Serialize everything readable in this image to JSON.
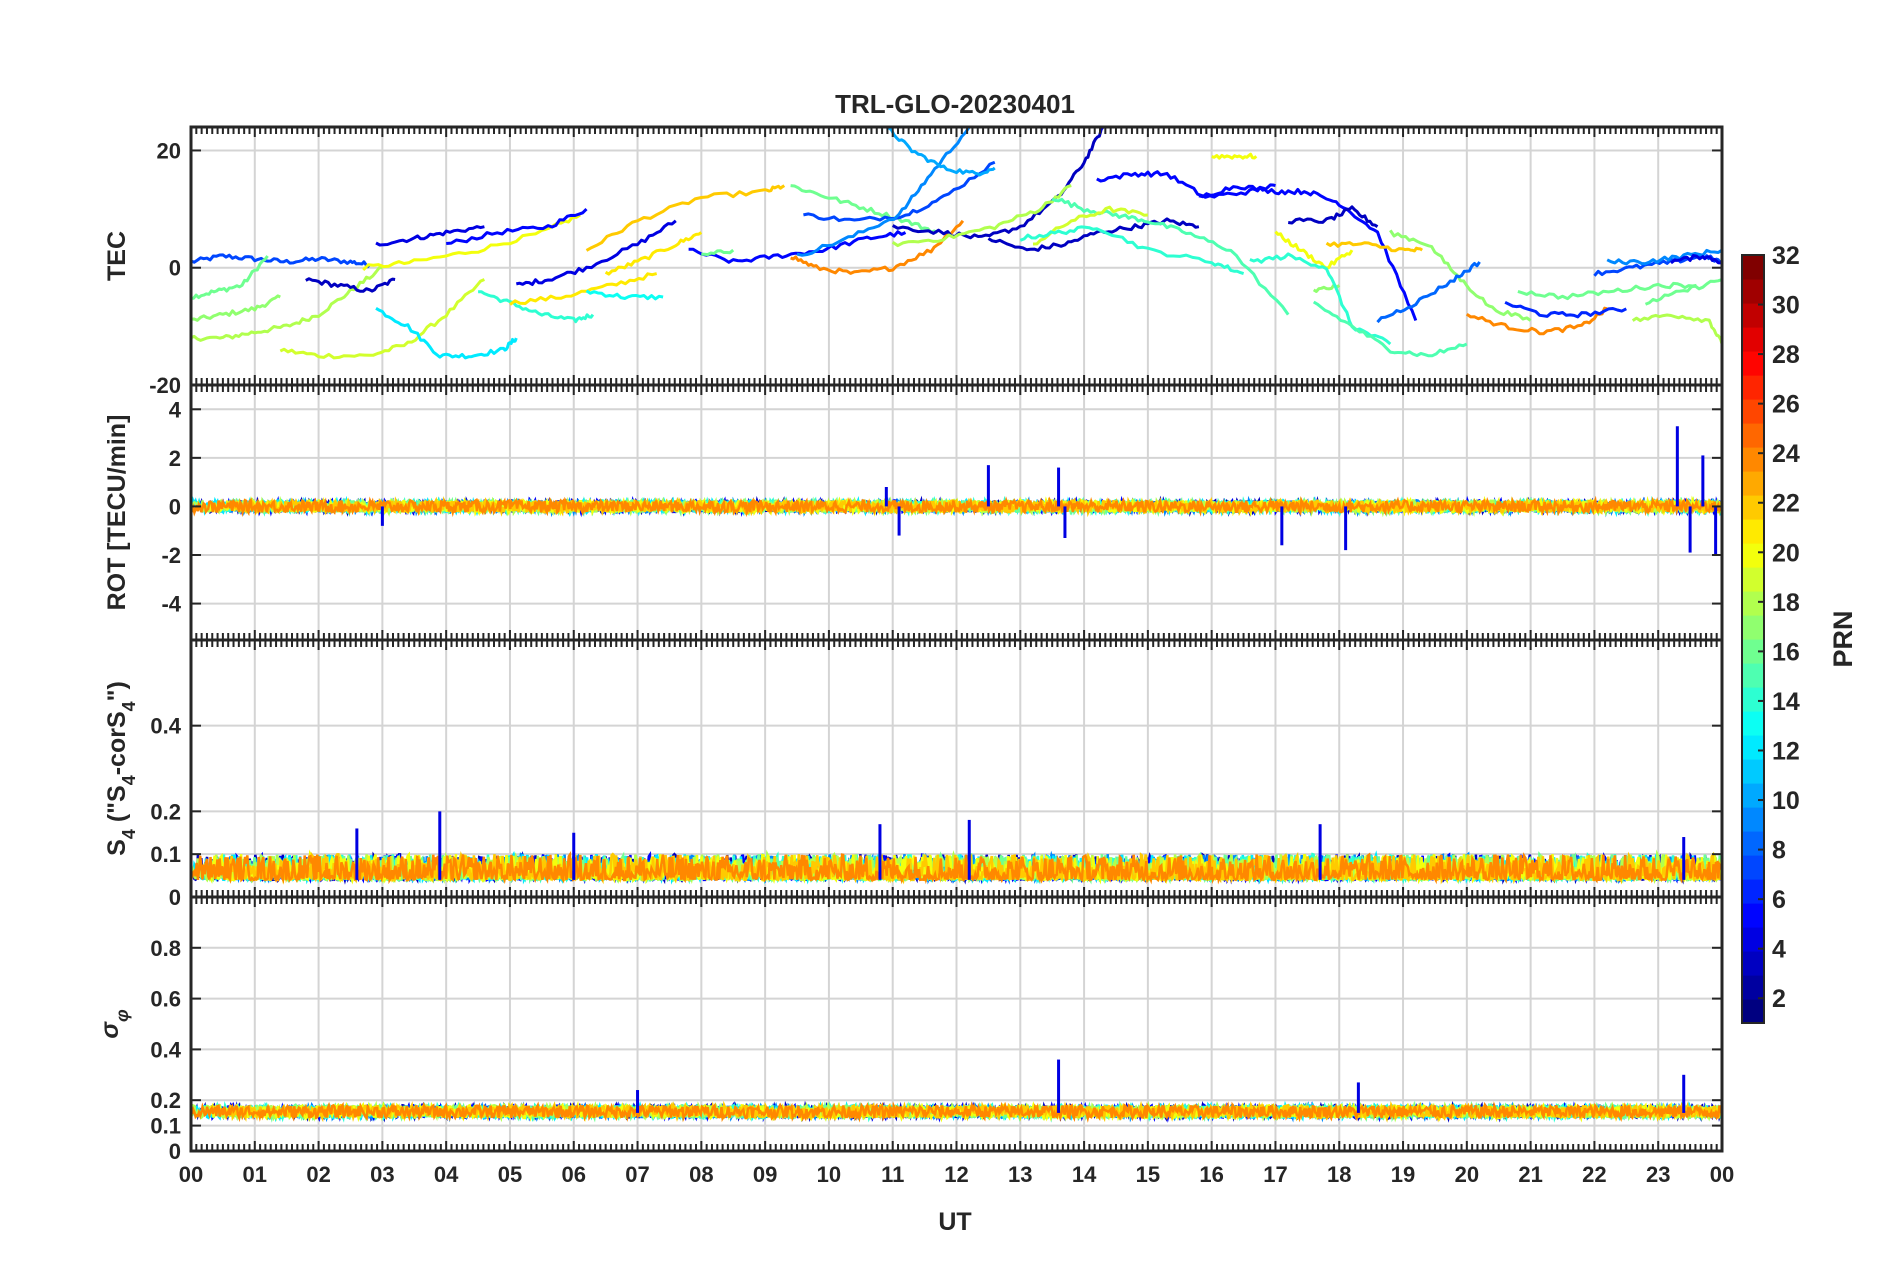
{
  "chart_data": {
    "type": "line",
    "title": "TRL-GLO-20230401",
    "xlabel": "UT",
    "x_tick_labels": [
      "00",
      "01",
      "02",
      "03",
      "04",
      "05",
      "06",
      "07",
      "08",
      "09",
      "10",
      "11",
      "12",
      "13",
      "14",
      "15",
      "16",
      "17",
      "18",
      "19",
      "20",
      "21",
      "22",
      "23",
      "00"
    ],
    "xlim": [
      0,
      24
    ],
    "grid": true,
    "panels": [
      {
        "id": "tec",
        "ylabel": "TEC",
        "ylim": [
          -20,
          24
        ],
        "y_ticks": [
          20,
          0,
          -20
        ],
        "y_tick_labels": [
          "20",
          "0",
          "-20"
        ],
        "series": [
          {
            "prn": 7,
            "x": [
              0.0,
              0.5,
              1.0,
              1.5,
              2.0,
              2.5,
              2.8
            ],
            "y": [
              1,
              2,
              1.5,
              1,
              1.5,
              1,
              0.5
            ]
          },
          {
            "prn": 16,
            "x": [
              0.0,
              0.4,
              0.8,
              1.2
            ],
            "y": [
              -5,
              -4,
              -3,
              2
            ]
          },
          {
            "prn": 17,
            "x": [
              0.0,
              0.5,
              1.0,
              1.4
            ],
            "y": [
              -9,
              -8,
              -7,
              -5
            ]
          },
          {
            "prn": 18,
            "x": [
              0.0,
              0.5,
              1.0,
              1.5,
              2.0,
              2.5,
              3.0
            ],
            "y": [
              -12,
              -12,
              -11,
              -10,
              -8,
              -4,
              0
            ]
          },
          {
            "prn": 19,
            "x": [
              1.4,
              2.0,
              2.8,
              3.4,
              4.0,
              4.6
            ],
            "y": [
              -14,
              -15,
              -15,
              -13,
              -8,
              -2
            ]
          },
          {
            "prn": 3,
            "x": [
              1.8,
              2.3,
              2.8,
              3.2
            ],
            "y": [
              -2,
              -3,
              -4,
              -2
            ]
          },
          {
            "prn": 4,
            "x": [
              2.9,
              3.5,
              4.0,
              4.6
            ],
            "y": [
              4,
              5,
              6,
              7
            ]
          },
          {
            "prn": 20,
            "x": [
              2.7,
              3.5,
              4.5,
              5.5,
              6.1
            ],
            "y": [
              0,
              1,
              3,
              6,
              9
            ]
          },
          {
            "prn": 5,
            "x": [
              4.0,
              4.8,
              5.6,
              6.2
            ],
            "y": [
              4,
              6,
              7,
              10
            ]
          },
          {
            "prn": 12,
            "x": [
              2.9,
              3.4,
              3.9,
              4.4,
              4.9,
              5.1
            ],
            "y": [
              -7,
              -10,
              -15,
              -15,
              -14,
              -12
            ]
          },
          {
            "prn": 14,
            "x": [
              4.5,
              5.0,
              5.5,
              6.0,
              6.3
            ],
            "y": [
              -4,
              -6,
              -8,
              -9,
              -8
            ]
          },
          {
            "prn": 21,
            "x": [
              5.0,
              5.8,
              6.6,
              7.3
            ],
            "y": [
              -6,
              -5,
              -3,
              -1
            ]
          },
          {
            "prn": 4,
            "x": [
              5.1,
              5.6,
              6.2,
              7.0,
              7.6
            ],
            "y": [
              -3,
              -2,
              0,
              4,
              8
            ]
          },
          {
            "prn": 13,
            "x": [
              6.2,
              6.8,
              7.4
            ],
            "y": [
              -4,
              -5,
              -5
            ]
          },
          {
            "prn": 21,
            "x": [
              6.5,
              7.0,
              7.6,
              8.0
            ],
            "y": [
              -1,
              1,
              4,
              6
            ]
          },
          {
            "prn": 22,
            "x": [
              6.2,
              7.0,
              8.0,
              9.0,
              9.3
            ],
            "y": [
              3,
              8,
              12,
              13,
              14
            ]
          },
          {
            "prn": 5,
            "x": [
              7.8,
              8.5,
              9.2,
              9.9,
              10.6,
              11.2
            ],
            "y": [
              3,
              1,
              2,
              3,
              5,
              6
            ]
          },
          {
            "prn": 16,
            "x": [
              8.0,
              8.5
            ],
            "y": [
              2,
              3
            ]
          },
          {
            "prn": 24,
            "x": [
              9.4,
              9.8,
              10.4,
              11.0,
              11.6,
              12.1
            ],
            "y": [
              2,
              0,
              -1,
              0,
              3,
              8
            ]
          },
          {
            "prn": 16,
            "x": [
              9.4,
              10.0,
              10.6,
              11.2,
              11.7
            ],
            "y": [
              14,
              12,
              10,
              8,
              6
            ]
          },
          {
            "prn": 7,
            "x": [
              9.6,
              10.4,
              11.2,
              11.8,
              12.6
            ],
            "y": [
              9,
              8,
              9,
              12,
              18
            ]
          },
          {
            "prn": 9,
            "x": [
              9.5,
              10.3,
              11.1,
              11.6,
              12.2
            ],
            "y": [
              2,
              5,
              9,
              16,
              24
            ]
          },
          {
            "prn": 10,
            "x": [
              10.9,
              11.3,
              11.8,
              12.3,
              12.6
            ],
            "y": [
              24,
              20,
              17,
              16,
              17
            ]
          },
          {
            "prn": 3,
            "x": [
              11.0,
              11.8,
              12.4,
              13.0,
              13.6,
              14.0,
              14.3
            ],
            "y": [
              7,
              6,
              5,
              7,
              12,
              18,
              24
            ]
          },
          {
            "prn": 18,
            "x": [
              11.0,
              11.8,
              12.6,
              13.3,
              13.8
            ],
            "y": [
              4,
              5,
              7,
              10,
              14
            ]
          },
          {
            "prn": 3,
            "x": [
              12.5,
              13.1,
              13.7,
              14.2,
              14.8,
              15.3,
              15.8
            ],
            "y": [
              5,
              3,
              4,
              6,
              7,
              8,
              7
            ]
          },
          {
            "prn": 15,
            "x": [
              13.5,
              14.0,
              14.5,
              15.0,
              15.6,
              16.3,
              17.2
            ],
            "y": [
              12,
              10,
              9,
              8,
              6,
              3,
              -8
            ]
          },
          {
            "prn": 19,
            "x": [
              13.2,
              13.8,
              14.4,
              15.0
            ],
            "y": [
              4,
              8,
              10,
              9
            ]
          },
          {
            "prn": 14,
            "x": [
              13.0,
              13.6,
              14.2,
              15.0,
              16.0,
              16.5
            ],
            "y": [
              5,
              6,
              7,
              3,
              1,
              -1
            ]
          },
          {
            "prn": 5,
            "x": [
              14.2,
              14.8,
              15.3,
              15.9,
              16.6,
              17.0
            ],
            "y": [
              15,
              16,
              16,
              12,
              13,
              14
            ]
          },
          {
            "prn": 5,
            "x": [
              15.8,
              16.4,
              17.0,
              17.5,
              18.0,
              18.6,
              19.2
            ],
            "y": [
              12,
              14,
              13,
              13,
              11,
              6,
              -9
            ]
          },
          {
            "prn": 3,
            "x": [
              17.2,
              17.8,
              18.2,
              18.6
            ],
            "y": [
              8,
              8,
              10,
              7
            ]
          },
          {
            "prn": 20,
            "x": [
              16.0,
              16.4,
              16.7
            ],
            "y": [
              19,
              19,
              19
            ]
          },
          {
            "prn": 20,
            "x": [
              17.0,
              17.4,
              17.8,
              18.2
            ],
            "y": [
              6,
              3,
              0,
              3
            ]
          },
          {
            "prn": 22,
            "x": [
              17.8,
              18.4,
              19.0,
              19.3
            ],
            "y": [
              4,
              4,
              3,
              3
            ]
          },
          {
            "prn": 17,
            "x": [
              17.6,
              18.0
            ],
            "y": [
              -4,
              -3
            ]
          },
          {
            "prn": 14,
            "x": [
              16.6,
              17.2,
              17.8,
              18.2,
              18.8
            ],
            "y": [
              1,
              2,
              0,
              -10,
              -13
            ]
          },
          {
            "prn": 15,
            "x": [
              17.6,
              18.2,
              18.8,
              19.4,
              20.0
            ],
            "y": [
              -6,
              -10,
              -14,
              -15,
              -13
            ]
          },
          {
            "prn": 17,
            "x": [
              18.8,
              19.4,
              19.9,
              20.4,
              21.0
            ],
            "y": [
              6,
              4,
              -2,
              -7,
              -9
            ]
          },
          {
            "prn": 8,
            "x": [
              18.6,
              19.2,
              19.8,
              20.2
            ],
            "y": [
              -9,
              -6,
              -2,
              1
            ]
          },
          {
            "prn": 24,
            "x": [
              20.0,
              20.6,
              21.2,
              21.8,
              22.2
            ],
            "y": [
              -8,
              -10,
              -11,
              -10,
              -7
            ]
          },
          {
            "prn": 6,
            "x": [
              20.6,
              21.2,
              21.8,
              22.5
            ],
            "y": [
              -6,
              -8,
              -8,
              -7
            ]
          },
          {
            "prn": 16,
            "x": [
              20.8,
              21.5,
              22.3,
              23.0,
              23.6
            ],
            "y": [
              -4,
              -5,
              -4,
              -3,
              -3
            ]
          },
          {
            "prn": 7,
            "x": [
              22.0,
              22.6,
              23.2,
              23.7,
              24.0
            ],
            "y": [
              -1,
              0,
              1,
              2,
              1
            ]
          },
          {
            "prn": 9,
            "x": [
              22.2,
              22.8,
              23.4,
              24.0
            ],
            "y": [
              1,
              1,
              2,
              3
            ]
          },
          {
            "prn": 4,
            "x": [
              23.2,
              23.7,
              24.0
            ],
            "y": [
              1,
              2,
              1
            ]
          },
          {
            "prn": 18,
            "x": [
              22.6,
              23.2,
              23.8,
              24.0
            ],
            "y": [
              -9,
              -8,
              -9,
              -13
            ]
          },
          {
            "prn": 16,
            "x": [
              22.8,
              23.4,
              24.0
            ],
            "y": [
              -6,
              -4,
              -2
            ]
          }
        ]
      },
      {
        "id": "rot",
        "ylabel": "ROT [TECU/min]",
        "ylim": [
          -5.5,
          5
        ],
        "y_ticks": [
          4,
          2,
          0,
          -2,
          -4
        ],
        "y_tick_labels": [
          "4",
          "2",
          "0",
          "-2",
          "-4"
        ],
        "base_level": 0,
        "noise_amplitude": 0.25,
        "spikes": [
          {
            "x": 3.0,
            "y": -0.8
          },
          {
            "x": 10.9,
            "y": 0.8
          },
          {
            "x": 11.1,
            "y": -1.2
          },
          {
            "x": 12.5,
            "y": 1.7
          },
          {
            "x": 13.6,
            "y": 1.6
          },
          {
            "x": 13.7,
            "y": -1.3
          },
          {
            "x": 17.1,
            "y": -1.6
          },
          {
            "x": 18.1,
            "y": -1.8
          },
          {
            "x": 23.3,
            "y": 3.3
          },
          {
            "x": 23.5,
            "y": -1.9
          },
          {
            "x": 23.7,
            "y": 2.1
          },
          {
            "x": 23.9,
            "y": -2.0
          }
        ]
      },
      {
        "id": "s4",
        "ylabel": "S_4 (\"S_4-corS_4\")",
        "ylim": [
          0,
          0.6
        ],
        "y_ticks": [
          0.4,
          0.2,
          0.1,
          0
        ],
        "y_tick_labels": [
          "0.4",
          "0.2",
          "0.1",
          "0"
        ],
        "base_level": 0.04,
        "noise_amplitude": 0.05,
        "spikes": [
          {
            "x": 3.9,
            "y": 0.2
          },
          {
            "x": 2.6,
            "y": 0.16
          },
          {
            "x": 6.0,
            "y": 0.15
          },
          {
            "x": 10.8,
            "y": 0.17
          },
          {
            "x": 12.2,
            "y": 0.18
          },
          {
            "x": 17.7,
            "y": 0.17
          },
          {
            "x": 23.4,
            "y": 0.14
          }
        ]
      },
      {
        "id": "sigma",
        "ylabel": "σ_φ",
        "ylim": [
          0,
          1
        ],
        "y_ticks": [
          0.8,
          0.6,
          0.4,
          0.2,
          0.1,
          0
        ],
        "y_tick_labels": [
          "0.8",
          "0.6",
          "0.4",
          "0.2",
          "0.1",
          "0"
        ],
        "base_level": 0.15,
        "noise_amplitude": 0.05,
        "spikes": [
          {
            "x": 13.6,
            "y": 0.36
          },
          {
            "x": 23.4,
            "y": 0.3
          },
          {
            "x": 7.0,
            "y": 0.24
          },
          {
            "x": 18.3,
            "y": 0.27
          }
        ]
      }
    ],
    "colorbar": {
      "label": "PRN",
      "range": [
        1,
        32
      ],
      "tick_labels": [
        "32",
        "30",
        "28",
        "26",
        "24",
        "22",
        "20",
        "18",
        "16",
        "14",
        "12",
        "10",
        "8",
        "6",
        "4",
        "2"
      ],
      "tick_values": [
        32,
        30,
        28,
        26,
        24,
        22,
        20,
        18,
        16,
        14,
        12,
        10,
        8,
        6,
        4,
        2
      ],
      "colormap": "jet"
    },
    "noise_prns": [
      3,
      5,
      9,
      12,
      14,
      16,
      18,
      20,
      22,
      24
    ]
  }
}
